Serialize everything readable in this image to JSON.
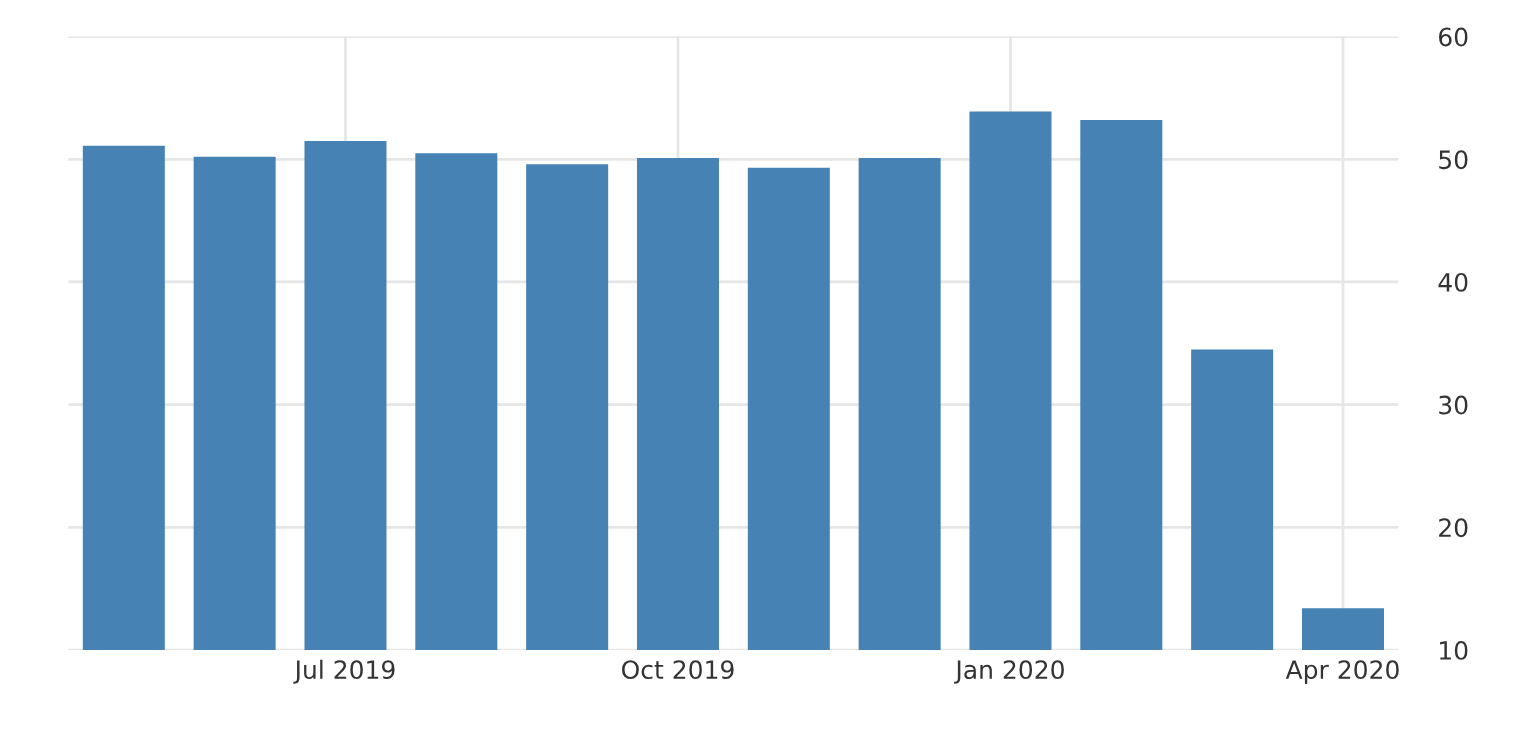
{
  "chart_data": {
    "type": "bar",
    "categories": [
      null,
      null,
      "Jul 2019",
      null,
      null,
      "Oct 2019",
      null,
      null,
      "Jan 2020",
      null,
      null,
      "Apr 2020"
    ],
    "values": [
      51.1,
      50.2,
      51.5,
      50.5,
      49.6,
      50.1,
      49.3,
      50.1,
      53.9,
      53.2,
      34.5,
      13.4
    ],
    "color": "#4682b4",
    "ylim": [
      10,
      60
    ],
    "yticks": [
      10,
      20,
      30,
      40,
      50,
      60
    ],
    "grid": true
  }
}
